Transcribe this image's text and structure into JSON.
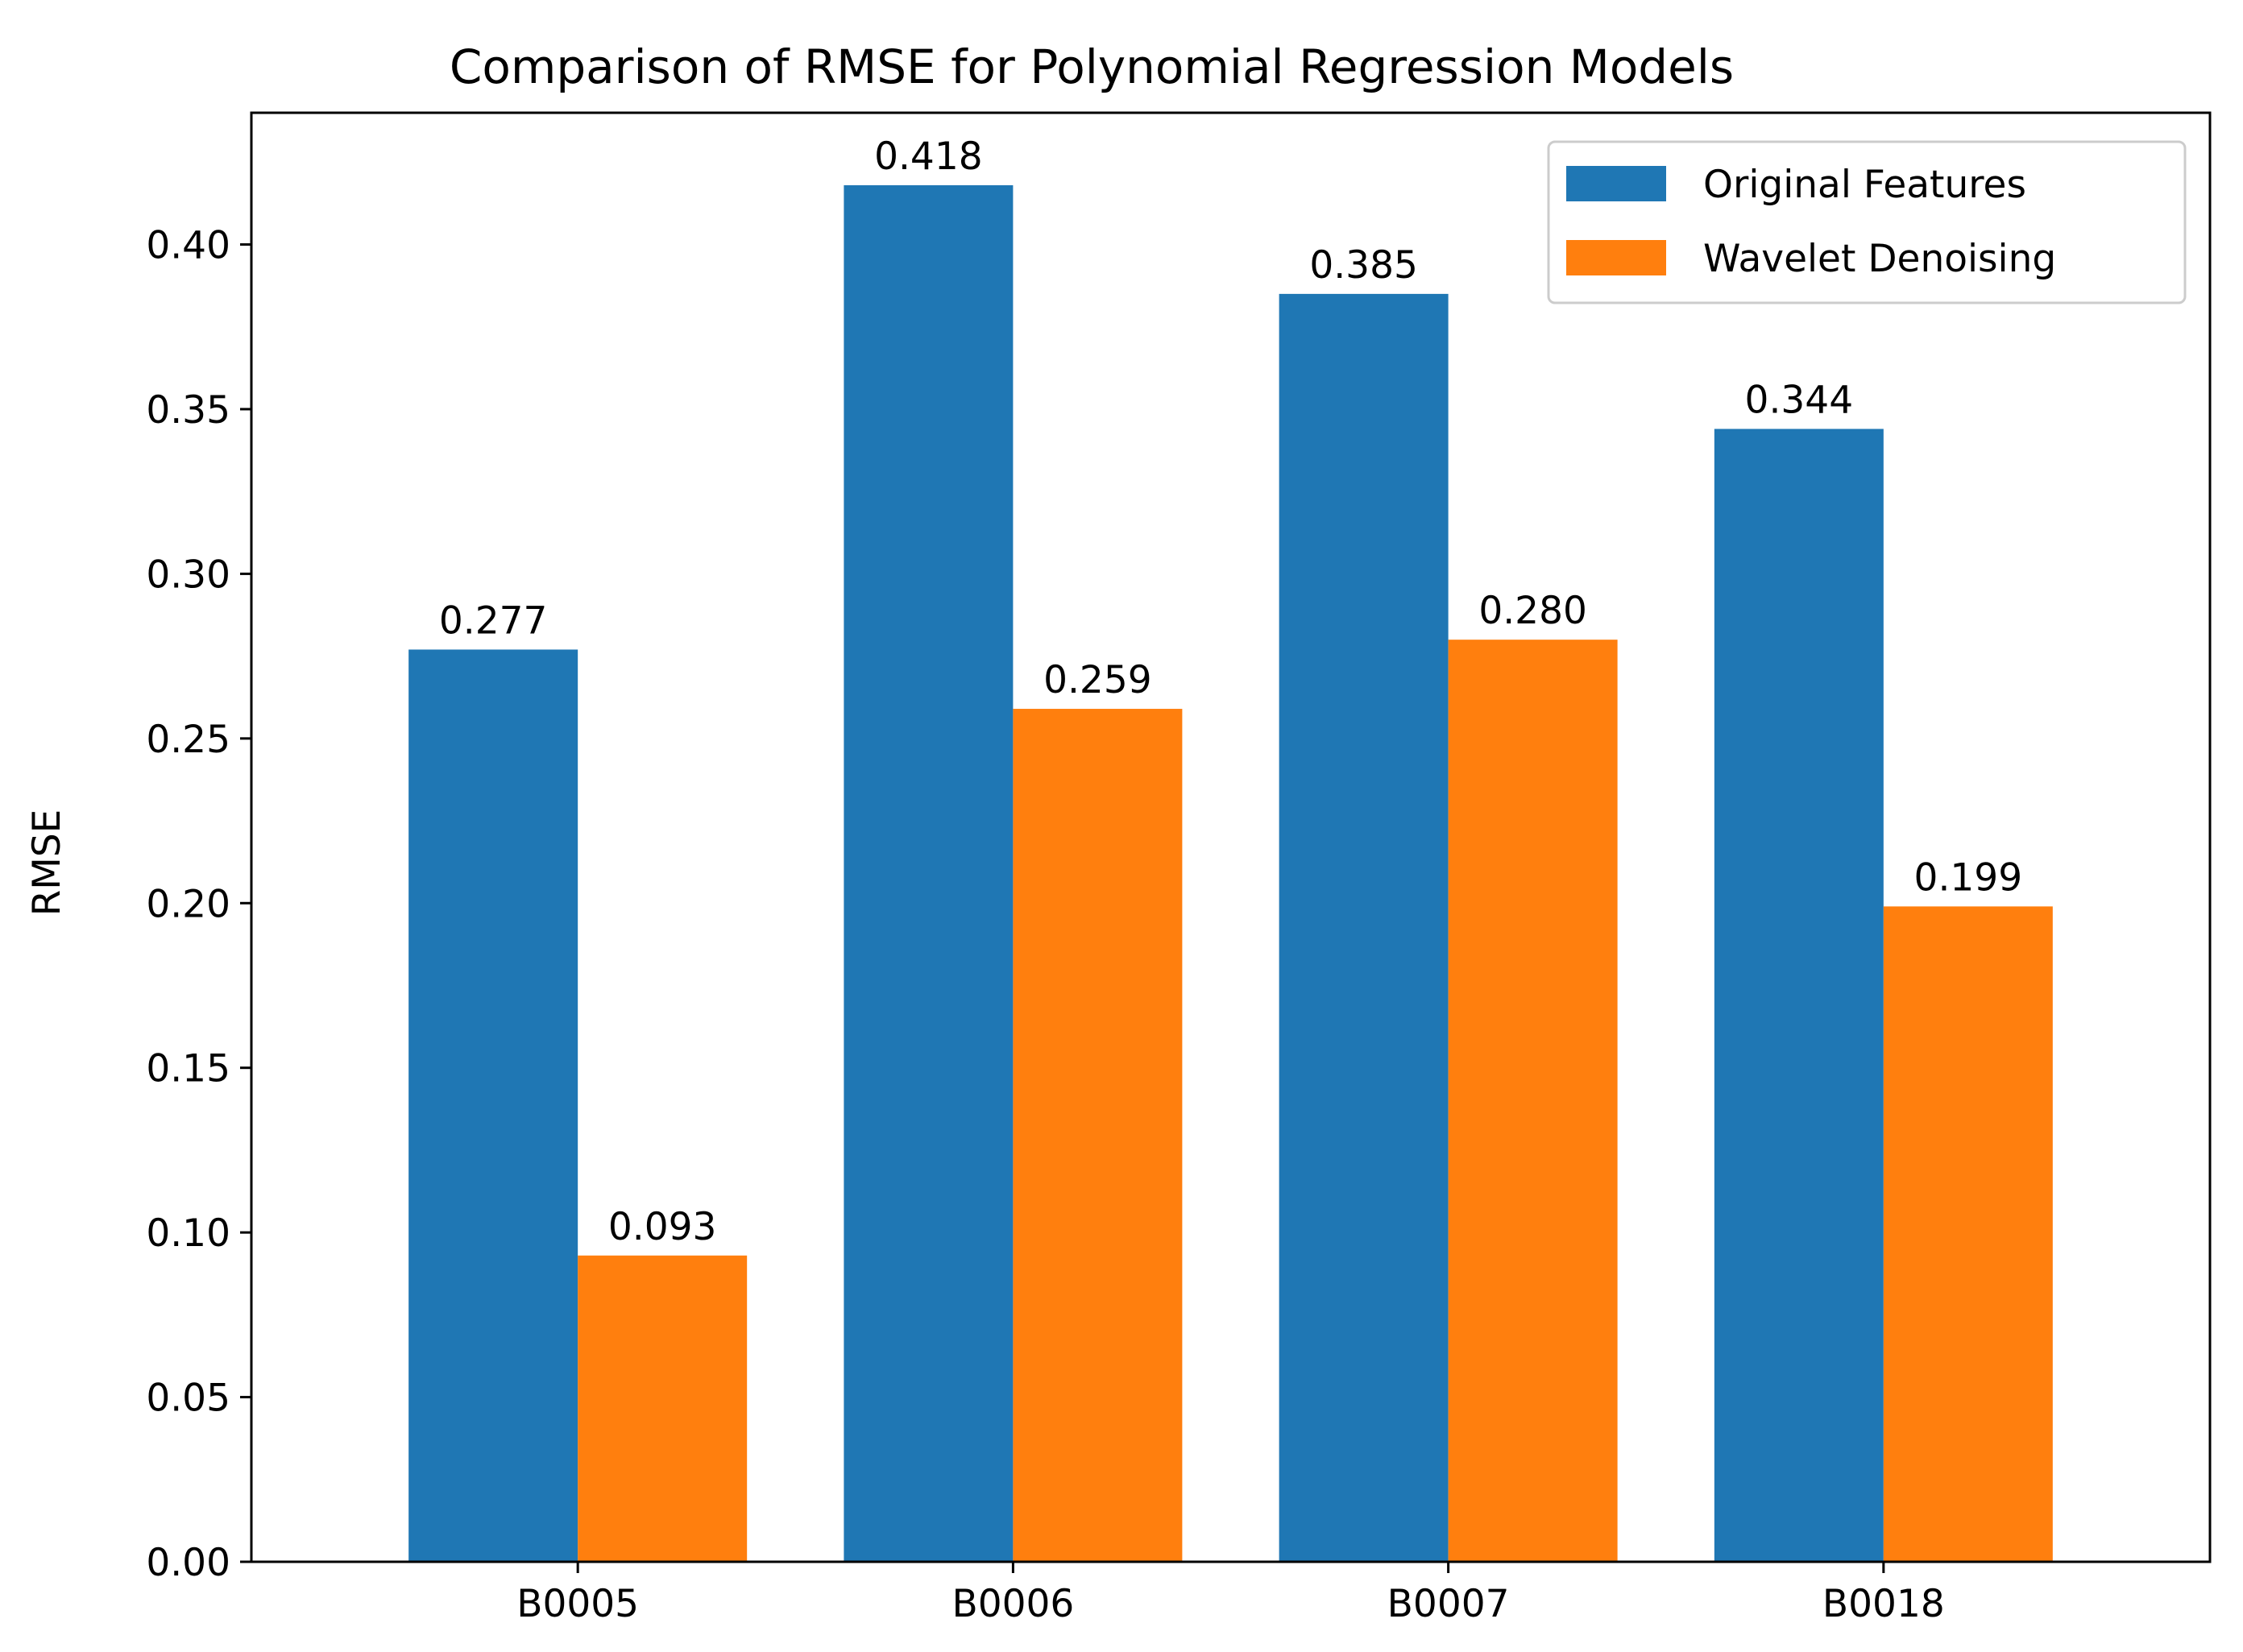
{
  "chart_data": {
    "type": "bar",
    "title": "Comparison of RMSE for Polynomial Regression Models",
    "xlabel": "",
    "ylabel": "RMSE",
    "ylim": [
      0,
      0.44
    ],
    "yticks": [
      0.0,
      0.05,
      0.1,
      0.15,
      0.2,
      0.25,
      0.3,
      0.35,
      0.4
    ],
    "ytick_labels": [
      "0.00",
      "0.05",
      "0.10",
      "0.15",
      "0.20",
      "0.25",
      "0.30",
      "0.35",
      "0.40"
    ],
    "categories": [
      "B0005",
      "B0006",
      "B0007",
      "B0018"
    ],
    "series": [
      {
        "name": "Original Features",
        "color": "#1f77b4",
        "values": [
          0.277,
          0.418,
          0.385,
          0.344
        ],
        "labels": [
          "0.277",
          "0.418",
          "0.385",
          "0.344"
        ]
      },
      {
        "name": "Wavelet Denoising",
        "color": "#ff7f0e",
        "values": [
          0.093,
          0.259,
          0.28,
          0.199
        ],
        "labels": [
          "0.093",
          "0.259",
          "0.280",
          "0.199"
        ]
      }
    ],
    "legend_position": "top-right",
    "grid": false
  }
}
